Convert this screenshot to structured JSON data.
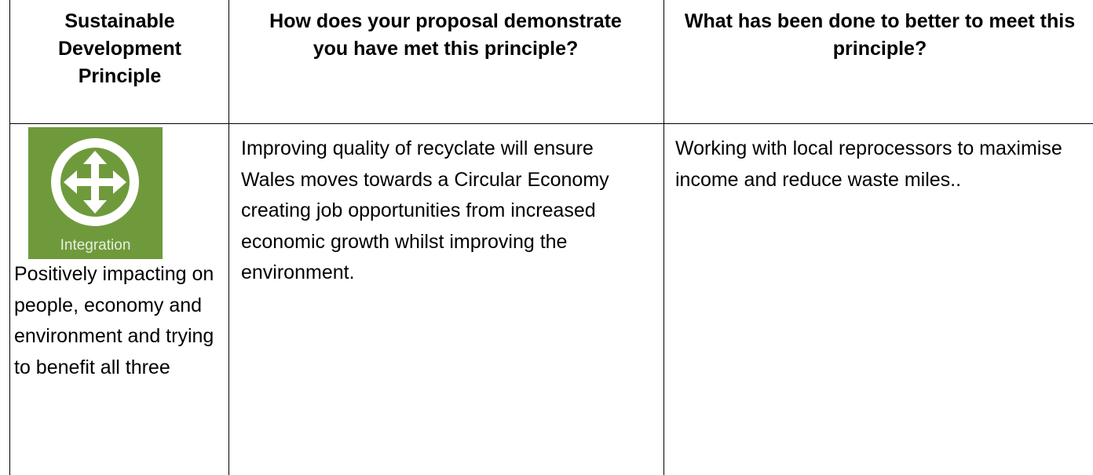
{
  "table": {
    "columns": [
      "Sustainable Development Principle",
      "How does your proposal demonstrate you have met this principle?",
      "What has been done to better to meet this principle?"
    ],
    "rows": [
      {
        "icon_label": "Integration",
        "cells": [
          "Positively impacting on people, economy and environment and trying to benefit all three",
          "Improving quality of recyclate will ensure Wales moves towards a Circular Economy creating job opportunities from increased economic growth whilst improving the environment.",
          "Working with local reprocessors to maximise income and reduce waste miles.."
        ]
      }
    ]
  }
}
